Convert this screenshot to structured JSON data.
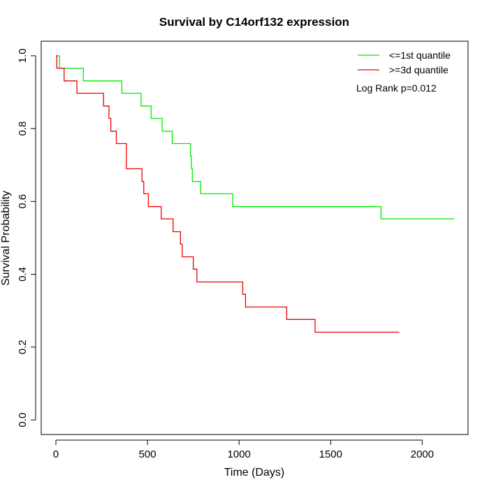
{
  "chart_data": {
    "type": "line",
    "title": "Survival by C14orf132 expression",
    "xlabel": "Time (Days)",
    "ylabel": "Survival Probability",
    "xlim": [
      -80,
      2250
    ],
    "ylim": [
      -0.04,
      1.04
    ],
    "x_ticks": [
      0,
      500,
      1000,
      1500,
      2000
    ],
    "y_ticks": [
      0.0,
      0.2,
      0.4,
      0.6,
      0.8,
      1.0
    ],
    "x_tick_labels": [
      "0",
      "500",
      "1000",
      "1500",
      "2000"
    ],
    "y_tick_labels": [
      "0.0",
      "0.2",
      "0.4",
      "0.6",
      "0.8",
      "1.0"
    ],
    "grid": false,
    "legend_position": "top-right",
    "annotation": "Log Rank p=0.012",
    "series": [
      {
        "name": "<=1st quantile",
        "color": "#00ee00",
        "step_points": [
          [
            0,
            1.0
          ],
          [
            20,
            1.0
          ],
          [
            20,
            0.966
          ],
          [
            150,
            0.966
          ],
          [
            150,
            0.931
          ],
          [
            360,
            0.931
          ],
          [
            360,
            0.897
          ],
          [
            465,
            0.897
          ],
          [
            465,
            0.862
          ],
          [
            520,
            0.862
          ],
          [
            520,
            0.828
          ],
          [
            580,
            0.828
          ],
          [
            580,
            0.793
          ],
          [
            635,
            0.793
          ],
          [
            635,
            0.759
          ],
          [
            735,
            0.759
          ],
          [
            735,
            0.724
          ],
          [
            740,
            0.724
          ],
          [
            740,
            0.69
          ],
          [
            745,
            0.69
          ],
          [
            745,
            0.655
          ],
          [
            790,
            0.655
          ],
          [
            790,
            0.621
          ],
          [
            965,
            0.621
          ],
          [
            965,
            0.586
          ],
          [
            1775,
            0.586
          ],
          [
            1775,
            0.552
          ],
          [
            2175,
            0.552
          ]
        ]
      },
      {
        "name": ">=3d quantile",
        "color": "#ee0000",
        "step_points": [
          [
            0,
            1.0
          ],
          [
            5,
            1.0
          ],
          [
            5,
            0.966
          ],
          [
            45,
            0.966
          ],
          [
            45,
            0.931
          ],
          [
            115,
            0.931
          ],
          [
            115,
            0.897
          ],
          [
            260,
            0.897
          ],
          [
            260,
            0.862
          ],
          [
            290,
            0.862
          ],
          [
            290,
            0.828
          ],
          [
            300,
            0.828
          ],
          [
            300,
            0.793
          ],
          [
            330,
            0.793
          ],
          [
            330,
            0.759
          ],
          [
            385,
            0.759
          ],
          [
            385,
            0.69
          ],
          [
            470,
            0.69
          ],
          [
            470,
            0.655
          ],
          [
            480,
            0.655
          ],
          [
            480,
            0.621
          ],
          [
            505,
            0.621
          ],
          [
            505,
            0.586
          ],
          [
            575,
            0.586
          ],
          [
            575,
            0.552
          ],
          [
            640,
            0.552
          ],
          [
            640,
            0.517
          ],
          [
            680,
            0.517
          ],
          [
            680,
            0.483
          ],
          [
            690,
            0.483
          ],
          [
            690,
            0.448
          ],
          [
            750,
            0.448
          ],
          [
            750,
            0.414
          ],
          [
            770,
            0.414
          ],
          [
            770,
            0.379
          ],
          [
            1020,
            0.379
          ],
          [
            1020,
            0.345
          ],
          [
            1035,
            0.345
          ],
          [
            1035,
            0.31
          ],
          [
            1260,
            0.31
          ],
          [
            1260,
            0.276
          ],
          [
            1415,
            0.276
          ],
          [
            1415,
            0.241
          ],
          [
            1875,
            0.241
          ]
        ]
      }
    ]
  }
}
